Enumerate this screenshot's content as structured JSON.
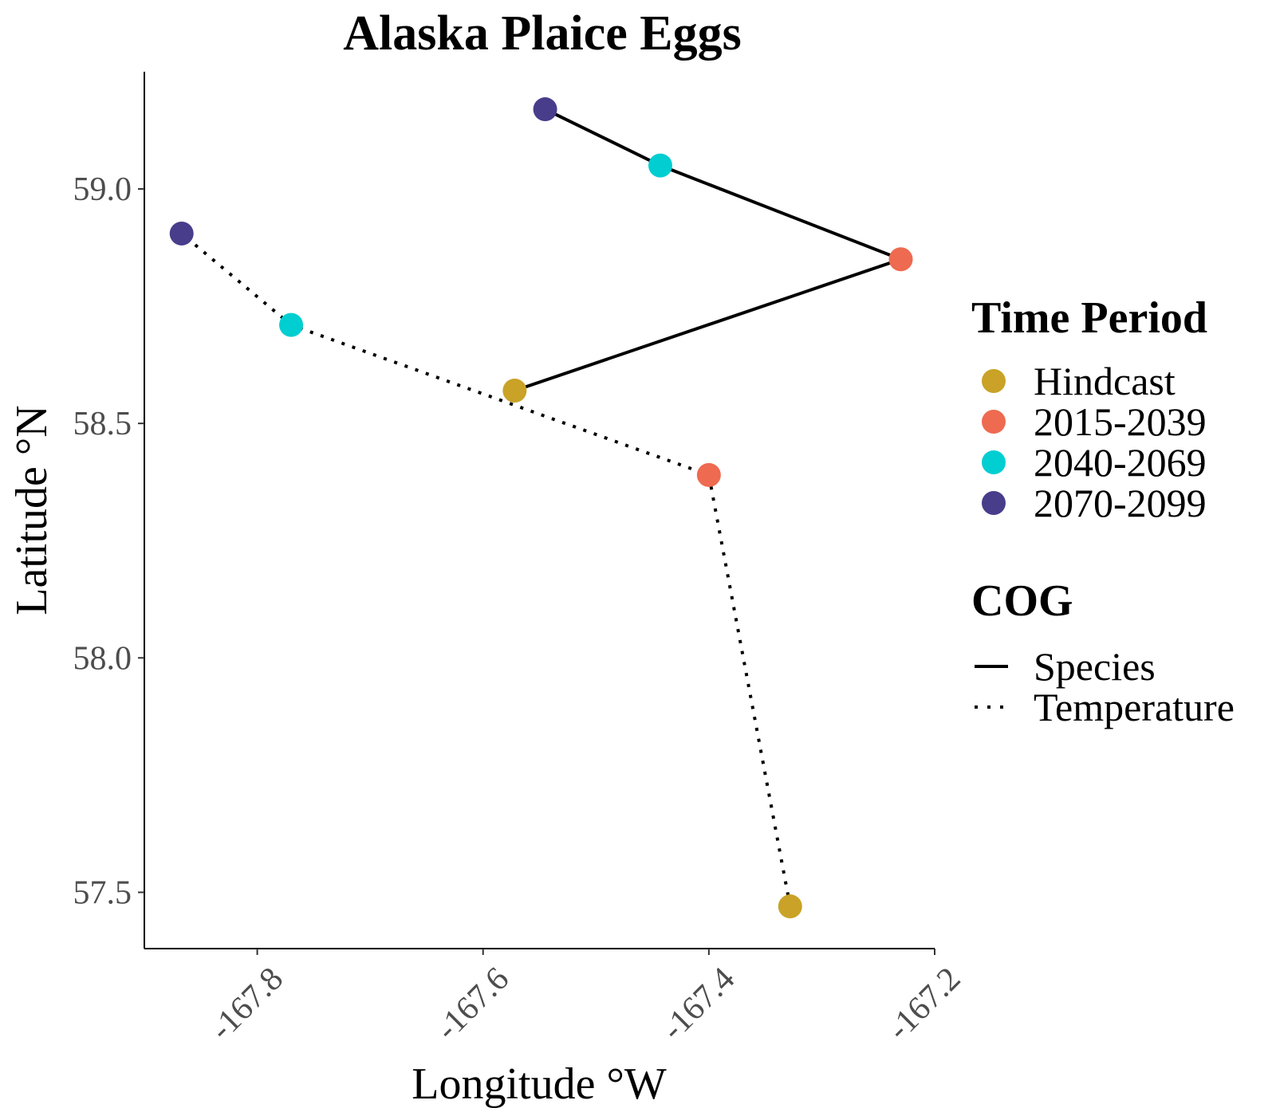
{
  "chart_data": {
    "type": "scatter",
    "title": "Alaska Plaice Eggs",
    "xlabel": "Longitude °W",
    "ylabel": "Latitude °N",
    "xlim": [
      -167.9,
      -167.2
    ],
    "ylim": [
      57.38,
      59.25
    ],
    "x_ticks": [
      -167.8,
      -167.6,
      -167.4,
      -167.2
    ],
    "x_tick_labels": [
      "-167.8",
      "-167.6",
      "-167.4",
      "-167.2"
    ],
    "y_ticks": [
      57.5,
      58.0,
      58.5,
      59.0
    ],
    "y_tick_labels": [
      "57.5",
      "58.0",
      "58.5",
      "59.0"
    ],
    "grid": false,
    "legend_position": "right",
    "time_period_legend": {
      "title": "Time Period",
      "items": [
        {
          "label": "Hindcast",
          "color": "#C9A227"
        },
        {
          "label": "2015-2039",
          "color": "#EE6A50"
        },
        {
          "label": "2040-2069",
          "color": "#00CED1"
        },
        {
          "label": "2070-2099",
          "color": "#483D8B"
        }
      ]
    },
    "cog_legend": {
      "title": "COG",
      "items": [
        {
          "label": "Species",
          "linetype": "solid"
        },
        {
          "label": "Temperature",
          "linetype": "dotted"
        }
      ]
    },
    "series": [
      {
        "name": "Species",
        "linetype": "solid",
        "points": [
          {
            "period": "Hindcast",
            "x": -167.572,
            "y": 58.57
          },
          {
            "period": "2015-2039",
            "x": -167.23,
            "y": 58.85
          },
          {
            "period": "2040-2069",
            "x": -167.443,
            "y": 59.05
          },
          {
            "period": "2070-2099",
            "x": -167.545,
            "y": 59.17
          }
        ]
      },
      {
        "name": "Temperature",
        "linetype": "dotted",
        "points": [
          {
            "period": "Hindcast",
            "x": -167.328,
            "y": 57.47
          },
          {
            "period": "2015-2039",
            "x": -167.4,
            "y": 58.39
          },
          {
            "period": "2040-2069",
            "x": -167.77,
            "y": 58.71
          },
          {
            "period": "2070-2099",
            "x": -167.867,
            "y": 58.905
          }
        ]
      }
    ]
  }
}
